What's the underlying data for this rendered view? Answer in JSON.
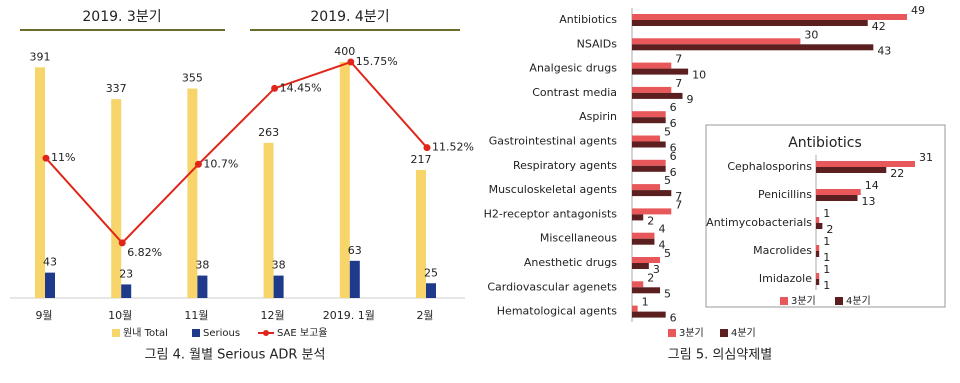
{
  "chart_data": [
    {
      "type": "bar_line",
      "title": "그림 4. 월별 Serious ADR 분석",
      "quarter_headers": [
        "2019. 3분기",
        "2019. 4분기"
      ],
      "categories": [
        "9월",
        "10월",
        "11월",
        "12월",
        "2019. 1월",
        "2월"
      ],
      "series": [
        {
          "name": "원내 Total",
          "type": "bar",
          "color": "#f7d56a",
          "values": [
            391,
            337,
            355,
            263,
            400,
            217
          ]
        },
        {
          "name": "Serious",
          "type": "bar",
          "color": "#1f3a8a",
          "values": [
            43,
            23,
            38,
            38,
            63,
            25
          ]
        },
        {
          "name": "SAE 보고율",
          "type": "line",
          "color": "#e0261b",
          "values": [
            11,
            6.82,
            10.7,
            14.45,
            15.75,
            11.52
          ],
          "value_labels": [
            "11%",
            "6.82%",
            "10.7%",
            "14.45%",
            "15.75%",
            "11.52%"
          ]
        }
      ]
    },
    {
      "type": "barh",
      "title": "그림 5. 의심약제별",
      "categories": [
        "Antibiotics",
        "NSAIDs",
        "Analgesic drugs",
        "Contrast media",
        "Aspirin",
        "Gastrointestinal agents",
        "Respiratory agents",
        "Musculoskeletal agents",
        "H2-receptor antagonists",
        "Miscellaneous",
        "Anesthetic drugs",
        "Cardiovascular agenets",
        "Hematological agents"
      ],
      "series": [
        {
          "name": "3분기",
          "color": "#e8585a",
          "values": [
            49,
            30,
            7,
            7,
            6,
            5,
            6,
            5,
            7,
            4,
            5,
            2,
            1
          ]
        },
        {
          "name": "4분기",
          "color": "#5c1f1f",
          "values": [
            42,
            43,
            10,
            9,
            6,
            6,
            6,
            7,
            2,
            4,
            3,
            5,
            6
          ]
        }
      ]
    },
    {
      "type": "barh",
      "title": "Antibiotics",
      "categories": [
        "Cephalosporins",
        "Penicillins",
        "Antimycobacterials",
        "Macrolides",
        "Imidazole"
      ],
      "series": [
        {
          "name": "3분기",
          "color": "#e8585a",
          "values": [
            31,
            14,
            1,
            1,
            1
          ]
        },
        {
          "name": "4분기",
          "color": "#5c1f1f",
          "values": [
            22,
            13,
            2,
            1,
            1
          ]
        }
      ]
    }
  ]
}
